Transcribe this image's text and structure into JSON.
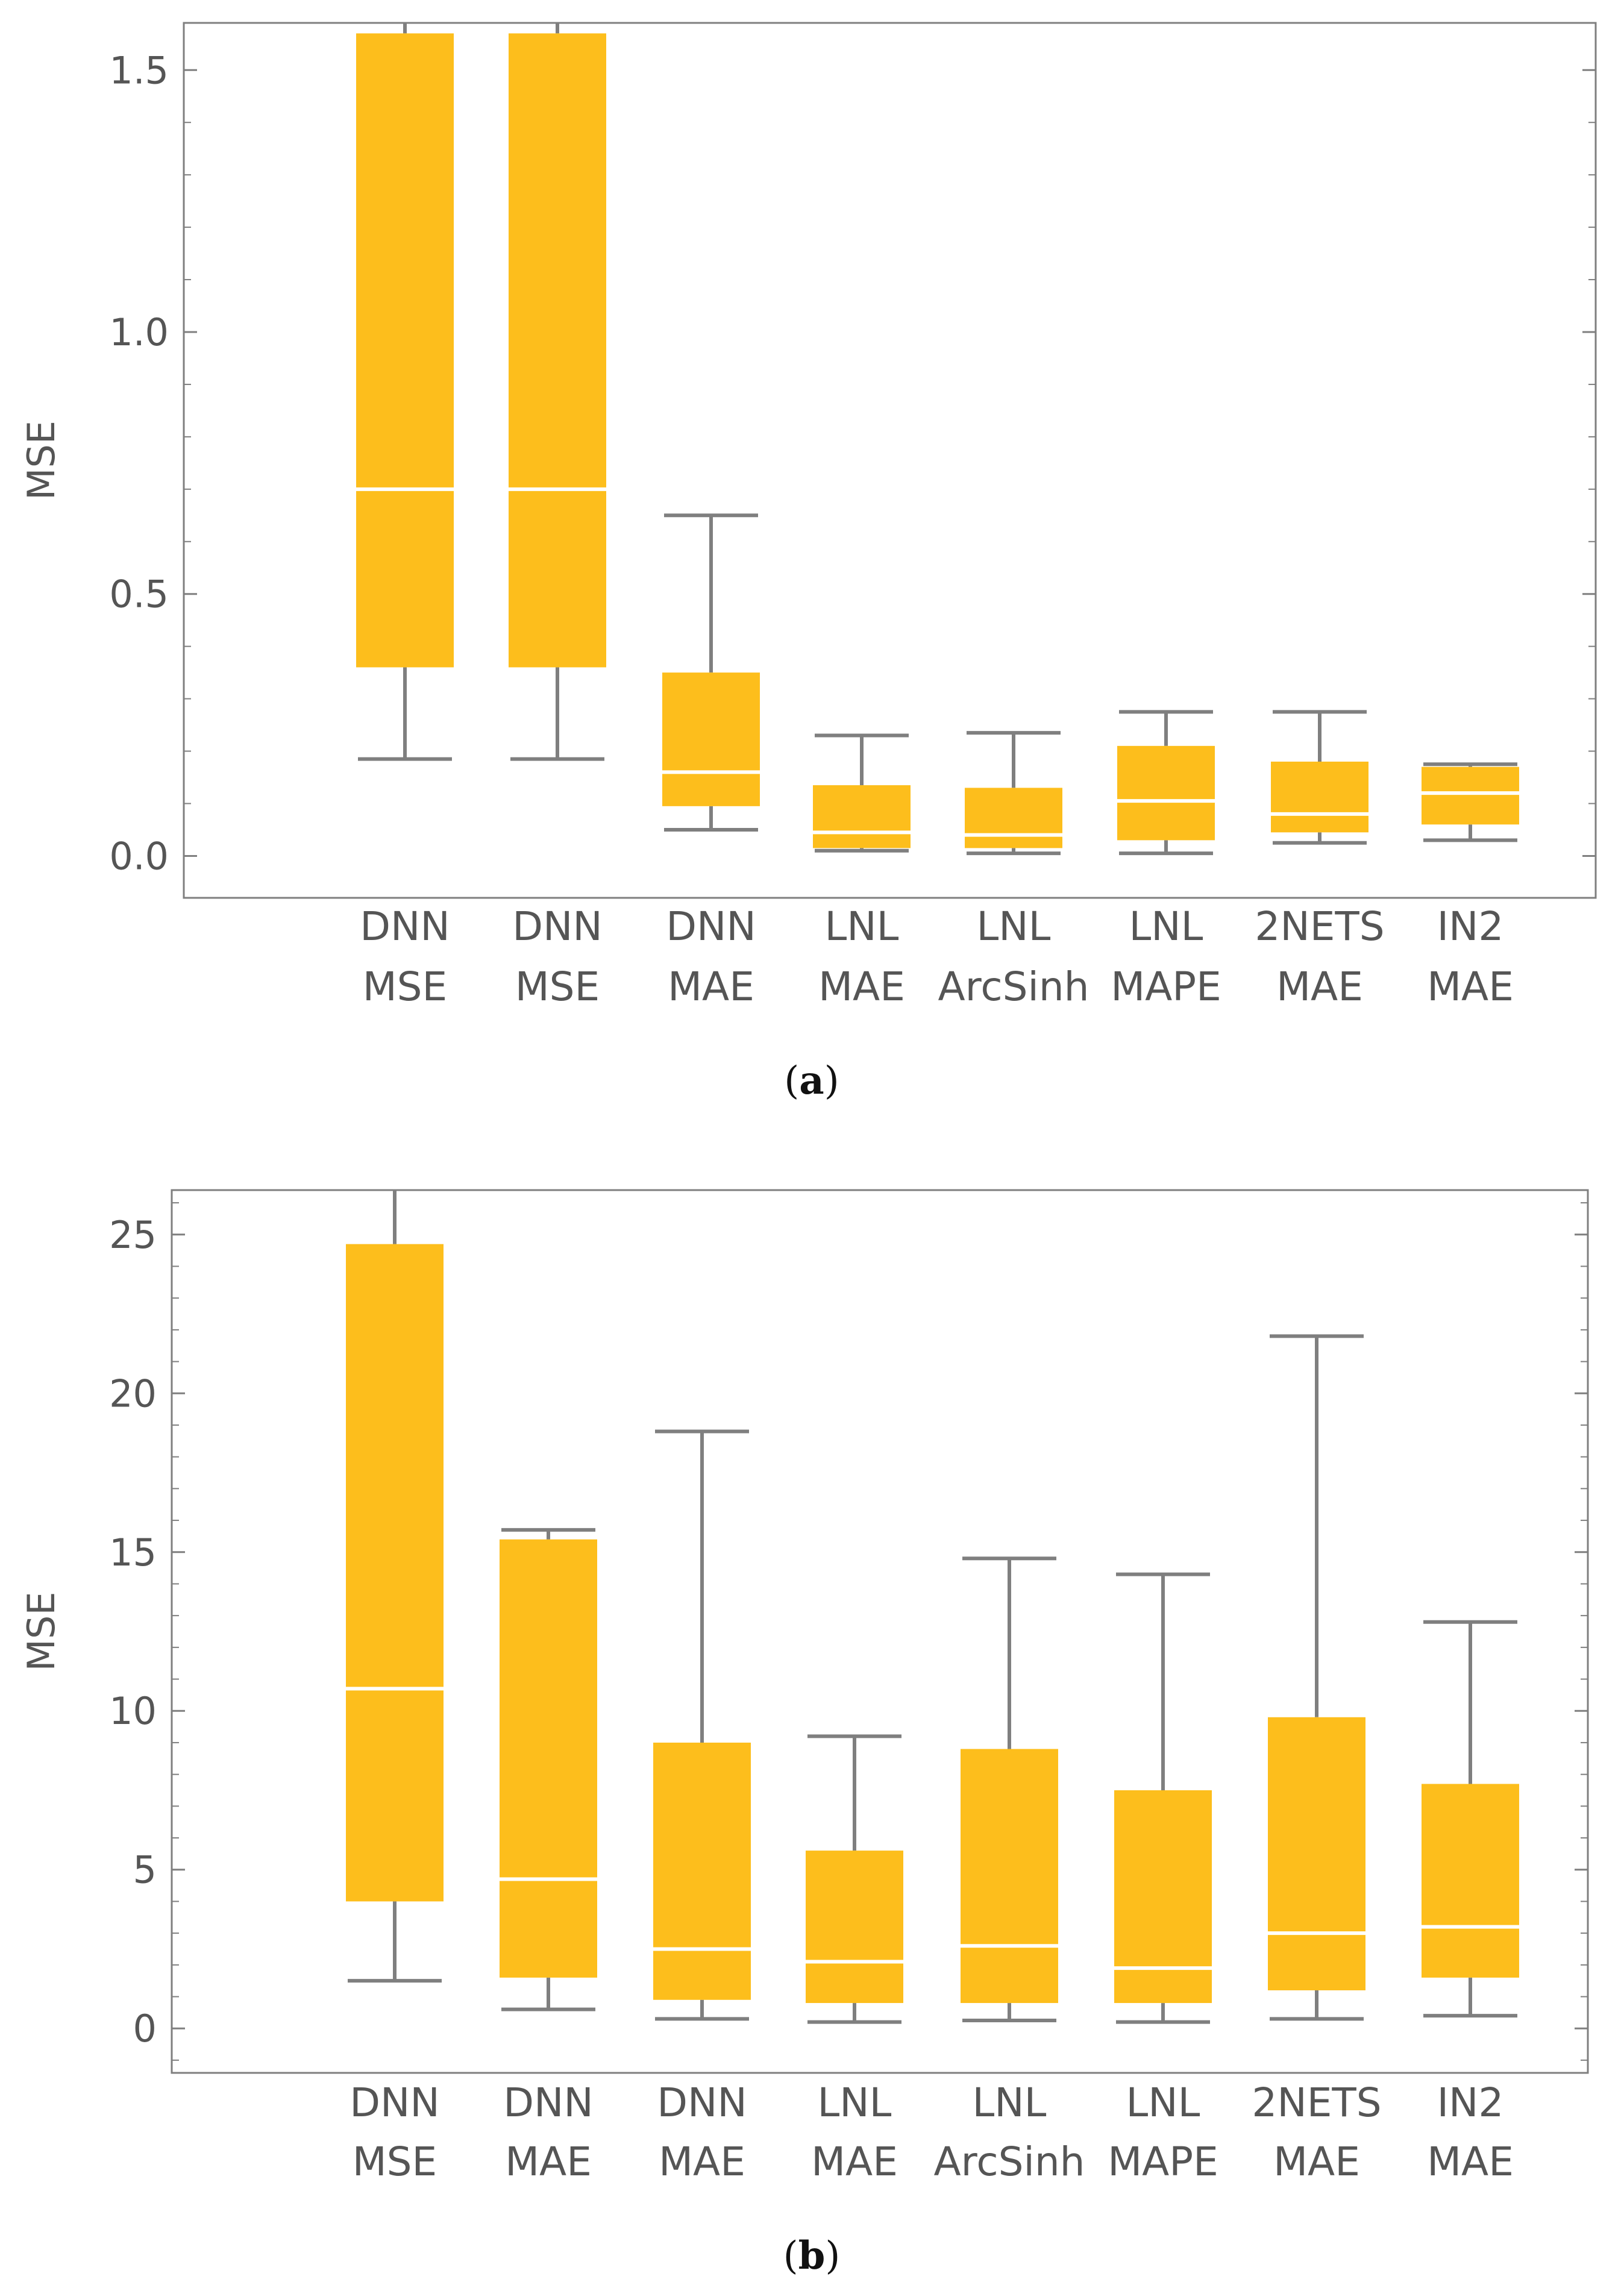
{
  "chart_data": [
    {
      "type": "box",
      "caption_open": "(",
      "caption_letter": "a",
      "caption_close": ")",
      "ylabel": "MSE",
      "ylim": [
        -0.08,
        1.59
      ],
      "yticks": [
        {
          "value": 0.0,
          "label": "0.0"
        },
        {
          "value": 0.5,
          "label": "0.5"
        },
        {
          "value": 1.0,
          "label": "1.0"
        },
        {
          "value": 1.5,
          "label": "1.5"
        }
      ],
      "categories": [
        {
          "line1": "DNN",
          "line2": "MSE"
        },
        {
          "line1": "DNN",
          "line2": "MSE"
        },
        {
          "line1": "DNN",
          "line2": "MAE"
        },
        {
          "line1": "LNL",
          "line2": "MAE"
        },
        {
          "line1": "LNL",
          "line2": "ArcSinh"
        },
        {
          "line1": "LNL",
          "line2": "MAPE"
        },
        {
          "line1": "2NETS",
          "line2": "MAE"
        },
        {
          "line1": "IN2",
          "line2": "MAE"
        }
      ],
      "boxes": [
        {
          "min": 0.185,
          "q1": 0.36,
          "median": 0.7,
          "q3": 1.57,
          "max": 1.62
        },
        {
          "min": 0.185,
          "q1": 0.36,
          "median": 0.7,
          "q3": 1.57,
          "max": 1.62
        },
        {
          "min": 0.05,
          "q1": 0.095,
          "median": 0.16,
          "q3": 0.35,
          "max": 0.65
        },
        {
          "min": 0.01,
          "q1": 0.015,
          "median": 0.045,
          "q3": 0.135,
          "max": 0.23
        },
        {
          "min": 0.005,
          "q1": 0.015,
          "median": 0.04,
          "q3": 0.13,
          "max": 0.235
        },
        {
          "min": 0.005,
          "q1": 0.03,
          "median": 0.105,
          "q3": 0.21,
          "max": 0.275
        },
        {
          "min": 0.025,
          "q1": 0.045,
          "median": 0.08,
          "q3": 0.18,
          "max": 0.275
        },
        {
          "min": 0.03,
          "q1": 0.06,
          "median": 0.12,
          "q3": 0.17,
          "max": 0.175
        }
      ]
    },
    {
      "type": "box",
      "caption_open": "(",
      "caption_letter": "b",
      "caption_close": ")",
      "ylabel": "MSE",
      "ylim": [
        -1.4,
        26.4
      ],
      "yticks": [
        {
          "value": 0,
          "label": "0"
        },
        {
          "value": 5,
          "label": "5"
        },
        {
          "value": 10,
          "label": "10"
        },
        {
          "value": 15,
          "label": "15"
        },
        {
          "value": 20,
          "label": "20"
        },
        {
          "value": 25,
          "label": "25"
        }
      ],
      "categories": [
        {
          "line1": "DNN",
          "line2": "MSE"
        },
        {
          "line1": "DNN",
          "line2": "MAE"
        },
        {
          "line1": "DNN",
          "line2": "MAE"
        },
        {
          "line1": "LNL",
          "line2": "MAE"
        },
        {
          "line1": "LNL",
          "line2": "ArcSinh"
        },
        {
          "line1": "LNL",
          "line2": "MAPE"
        },
        {
          "line1": "2NETS",
          "line2": "MAE"
        },
        {
          "line1": "IN2",
          "line2": "MAE"
        }
      ],
      "boxes": [
        {
          "min": 1.5,
          "q1": 4.0,
          "median": 10.7,
          "q3": 24.7,
          "max": 27.0
        },
        {
          "min": 0.6,
          "q1": 1.6,
          "median": 4.7,
          "q3": 15.4,
          "max": 15.7
        },
        {
          "min": 0.3,
          "q1": 0.9,
          "median": 2.5,
          "q3": 9.0,
          "max": 18.8
        },
        {
          "min": 0.2,
          "q1": 0.8,
          "median": 2.1,
          "q3": 5.6,
          "max": 9.2
        },
        {
          "min": 0.25,
          "q1": 0.8,
          "median": 2.6,
          "q3": 8.8,
          "max": 14.8
        },
        {
          "min": 0.2,
          "q1": 0.8,
          "median": 1.9,
          "q3": 7.5,
          "max": 14.3
        },
        {
          "min": 0.3,
          "q1": 1.2,
          "median": 3.0,
          "q3": 9.8,
          "max": 21.8
        },
        {
          "min": 0.4,
          "q1": 1.6,
          "median": 3.2,
          "q3": 7.7,
          "max": 12.8
        }
      ]
    }
  ],
  "colors": {
    "box_fill": "#FDBE1C",
    "median_line": "#FFFFFF",
    "whisker": "#7F7F7F",
    "frame": "#7F7F7F",
    "text": "#555555"
  }
}
